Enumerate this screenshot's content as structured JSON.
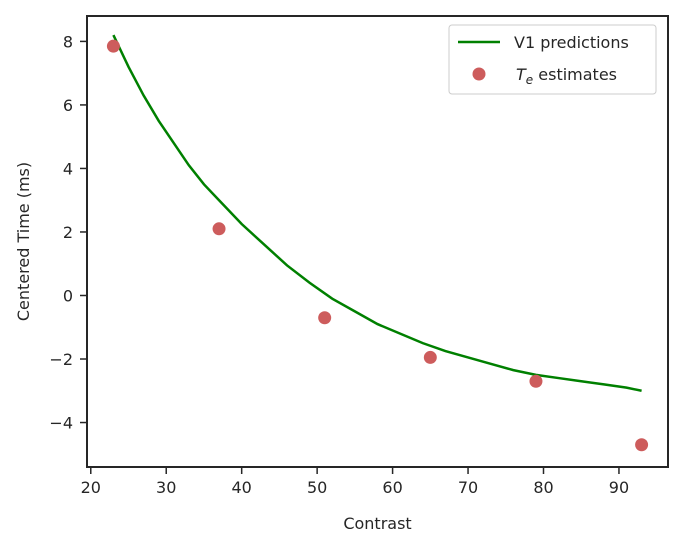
{
  "chart_data": {
    "type": "line",
    "title": "",
    "xlabel": "Contrast",
    "ylabel": "Centered Time (ms)",
    "xlim": [
      19.5,
      96.5
    ],
    "ylim": [
      -5.4,
      8.8
    ],
    "xticks": [
      20,
      30,
      40,
      50,
      60,
      70,
      80,
      90
    ],
    "yticks": [
      -4,
      -2,
      0,
      2,
      4,
      6,
      8
    ],
    "grid": false,
    "legend_position": "top-right",
    "series": [
      {
        "name": "V1 predictions",
        "kind": "line",
        "color": "#008000",
        "x": [
          23,
          25,
          27,
          29,
          31,
          33,
          35,
          37,
          40,
          43,
          46,
          49,
          52,
          55,
          58,
          61,
          64,
          67,
          70,
          73,
          76,
          79,
          82,
          85,
          88,
          91,
          93
        ],
        "y": [
          8.2,
          7.2,
          6.3,
          5.5,
          4.8,
          4.1,
          3.5,
          3.0,
          2.25,
          1.6,
          0.95,
          0.4,
          -0.1,
          -0.5,
          -0.9,
          -1.2,
          -1.5,
          -1.75,
          -1.95,
          -2.15,
          -2.35,
          -2.5,
          -2.6,
          -2.7,
          -2.8,
          -2.9,
          -3.0
        ]
      },
      {
        "name": "T_e estimates",
        "kind": "scatter",
        "color": "#cd5c5c",
        "x": [
          23,
          37,
          51,
          65,
          79,
          93
        ],
        "y": [
          7.85,
          2.1,
          -0.7,
          -1.95,
          -2.7,
          -4.7
        ]
      }
    ]
  },
  "legend": {
    "line_label": "V1 predictions",
    "scatter_label_main": "T",
    "scatter_label_sub": "e",
    "scatter_label_rest": " estimates"
  }
}
